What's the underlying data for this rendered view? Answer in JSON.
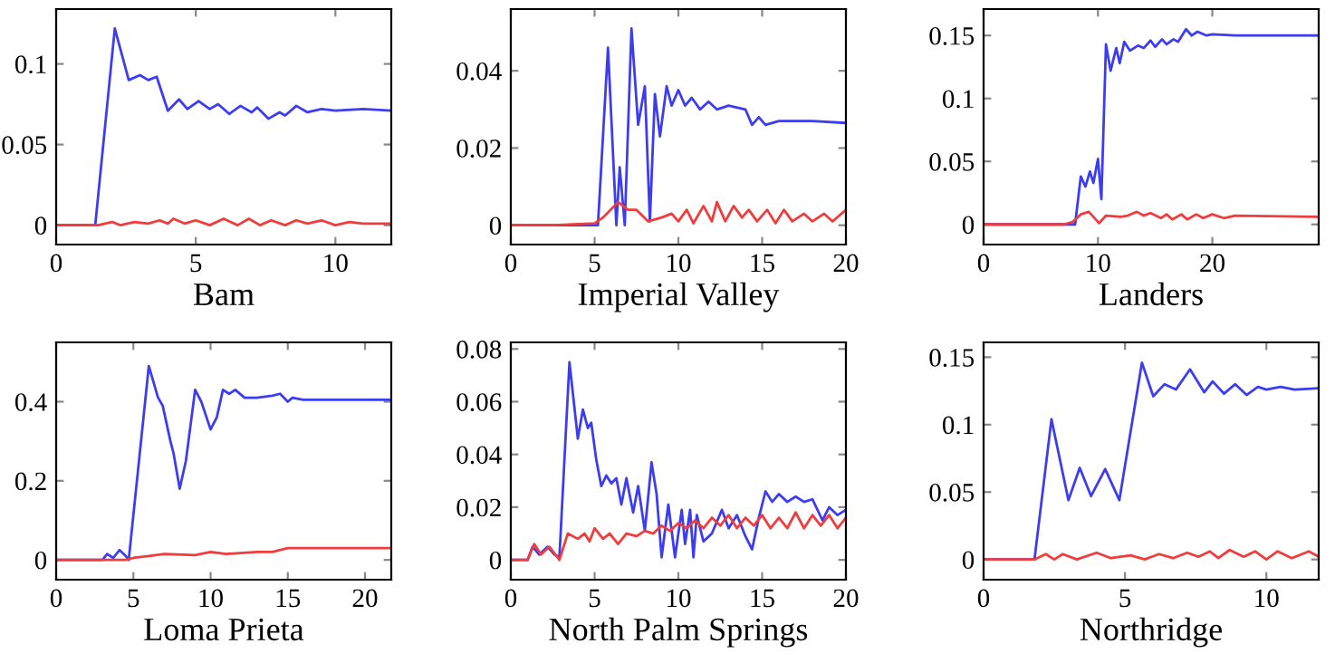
{
  "chart_data": [
    {
      "type": "line",
      "xlabel": "Bam",
      "xlim": [
        0,
        12
      ],
      "ylim": [
        -0.012,
        0.134
      ],
      "xticks": [
        0,
        5,
        10
      ],
      "yticks": [
        0,
        0.05,
        0.1
      ],
      "grid": false,
      "series": [
        {
          "color": "#3c3cf0",
          "x": [
            0,
            1.4,
            2.1,
            2.6,
            3.0,
            3.3,
            3.6,
            4.0,
            4.4,
            4.7,
            5.1,
            5.5,
            5.8,
            6.2,
            6.6,
            7.0,
            7.2,
            7.6,
            8.0,
            8.2,
            8.6,
            9.0,
            9.5,
            10,
            11,
            12
          ],
          "values": [
            0,
            0,
            0.122,
            0.09,
            0.093,
            0.09,
            0.092,
            0.071,
            0.078,
            0.072,
            0.077,
            0.072,
            0.075,
            0.069,
            0.074,
            0.07,
            0.073,
            0.066,
            0.07,
            0.068,
            0.074,
            0.07,
            0.072,
            0.071,
            0.072,
            0.071
          ]
        },
        {
          "color": "#f03c3c",
          "x": [
            0,
            1.5,
            2,
            2.3,
            2.8,
            3.3,
            3.7,
            4,
            4.2,
            4.6,
            5,
            5.5,
            6,
            6.5,
            6.9,
            7.3,
            7.7,
            8.2,
            8.6,
            9,
            9.5,
            10,
            10.5,
            11,
            12
          ],
          "values": [
            0,
            0,
            0.002,
            0,
            0.002,
            0.001,
            0.003,
            0.001,
            0.004,
            0.001,
            0.003,
            0,
            0.004,
            0,
            0.004,
            0,
            0.003,
            0,
            0.003,
            0.001,
            0.003,
            0,
            0.002,
            0.001,
            0.001
          ]
        }
      ]
    },
    {
      "type": "line",
      "xlabel": "Imperial Valley",
      "xlim": [
        0,
        20
      ],
      "ylim": [
        -0.005,
        0.056
      ],
      "xticks": [
        0,
        5,
        10,
        15,
        20
      ],
      "yticks": [
        0,
        0.02,
        0.04
      ],
      "grid": false,
      "series": [
        {
          "color": "#3c3cf0",
          "x": [
            0,
            5.2,
            5.8,
            6.3,
            6.5,
            6.8,
            7.2,
            7.6,
            8.0,
            8.3,
            8.6,
            8.9,
            9.3,
            9.6,
            10,
            10.4,
            10.8,
            11.3,
            11.8,
            12.3,
            13,
            14,
            14.4,
            14.8,
            15.2,
            16,
            18,
            20
          ],
          "values": [
            0,
            0,
            0.046,
            0,
            0.015,
            0,
            0.051,
            0.026,
            0.036,
            0.001,
            0.034,
            0.023,
            0.036,
            0.031,
            0.035,
            0.031,
            0.033,
            0.03,
            0.032,
            0.03,
            0.031,
            0.03,
            0.026,
            0.028,
            0.026,
            0.027,
            0.027,
            0.0265
          ]
        },
        {
          "color": "#f03c3c",
          "x": [
            0,
            2.5,
            5,
            5.5,
            6.4,
            7,
            7.5,
            8.2,
            9,
            9.6,
            10,
            10.5,
            10.9,
            11.5,
            12,
            12.3,
            12.8,
            13.3,
            13.8,
            14.2,
            14.7,
            15.3,
            15.8,
            16.3,
            16.8,
            17.5,
            18,
            18.7,
            19.2,
            20
          ],
          "values": [
            0,
            0,
            0.0005,
            0.002,
            0.006,
            0.004,
            0.004,
            0.001,
            0.002,
            0.003,
            0.001,
            0.004,
            0.0005,
            0.005,
            0.001,
            0.006,
            0.001,
            0.005,
            0.002,
            0.004,
            0.001,
            0.004,
            0.0005,
            0.004,
            0.001,
            0.003,
            0.001,
            0.003,
            0.001,
            0.004
          ]
        }
      ]
    },
    {
      "type": "line",
      "xlabel": "Landers",
      "xlim": [
        0,
        29.3
      ],
      "ylim": [
        -0.016,
        0.171
      ],
      "xticks": [
        0,
        10,
        20
      ],
      "yticks": [
        0,
        0.05,
        0.1,
        0.15
      ],
      "grid": false,
      "series": [
        {
          "color": "#3c3cf0",
          "x": [
            0,
            8.0,
            8.5,
            8.9,
            9.3,
            9.6,
            10,
            10.3,
            10.7,
            11.1,
            11.6,
            11.9,
            12.3,
            12.8,
            13.5,
            14,
            14.6,
            15,
            15.6,
            16,
            16.6,
            17,
            17.7,
            18.2,
            18.7,
            19.5,
            20,
            22,
            29.3
          ],
          "values": [
            0,
            0,
            0.038,
            0.03,
            0.042,
            0.033,
            0.052,
            0.02,
            0.143,
            0.122,
            0.14,
            0.128,
            0.145,
            0.138,
            0.142,
            0.14,
            0.146,
            0.141,
            0.147,
            0.143,
            0.147,
            0.145,
            0.155,
            0.15,
            0.153,
            0.15,
            0.151,
            0.15,
            0.15
          ]
        },
        {
          "color": "#f03c3c",
          "x": [
            0,
            7,
            7.8,
            8.5,
            9.2,
            9.6,
            10.1,
            10.7,
            12,
            12.6,
            13.4,
            14,
            14.6,
            15.5,
            16,
            16.5,
            17.3,
            17.8,
            18.6,
            19.2,
            20,
            21,
            22,
            29.3
          ],
          "values": [
            0,
            0,
            0.002,
            0.008,
            0.01,
            0.006,
            0.001,
            0.007,
            0.006,
            0.007,
            0.01,
            0.007,
            0.009,
            0.005,
            0.008,
            0.004,
            0.008,
            0.004,
            0.008,
            0.005,
            0.008,
            0.005,
            0.007,
            0.006
          ]
        }
      ]
    },
    {
      "type": "line",
      "xlabel": "Loma Prieta",
      "xlim": [
        0,
        21.7
      ],
      "ylim": [
        -0.05,
        0.55
      ],
      "xticks": [
        0,
        5,
        10,
        15,
        20
      ],
      "yticks": [
        0,
        0.2,
        0.4
      ],
      "grid": false,
      "series": [
        {
          "color": "#3c3cf0",
          "x": [
            0,
            3.0,
            3.3,
            3.7,
            4.1,
            4.5,
            4.7,
            6.0,
            6.6,
            6.9,
            7.4,
            7.6,
            8.0,
            8.4,
            9.0,
            9.4,
            10.0,
            10.4,
            10.8,
            11.2,
            11.6,
            12.2,
            13,
            14,
            14.5,
            15,
            15.3,
            16,
            21.7
          ],
          "values": [
            0,
            0,
            0.015,
            0.005,
            0.025,
            0.01,
            0,
            0.49,
            0.41,
            0.39,
            0.3,
            0.27,
            0.18,
            0.25,
            0.43,
            0.4,
            0.33,
            0.36,
            0.43,
            0.42,
            0.43,
            0.41,
            0.41,
            0.415,
            0.42,
            0.4,
            0.41,
            0.405,
            0.405
          ]
        },
        {
          "color": "#f03c3c",
          "x": [
            0,
            4.5,
            5,
            6,
            7,
            9,
            10,
            11,
            13,
            14,
            15,
            18,
            21.7
          ],
          "values": [
            0,
            0,
            0.005,
            0.01,
            0.015,
            0.012,
            0.02,
            0.015,
            0.02,
            0.02,
            0.03,
            0.03,
            0.03
          ]
        }
      ]
    },
    {
      "type": "line",
      "xlabel": "North Palm Springs",
      "xlim": [
        0,
        20
      ],
      "ylim": [
        -0.0075,
        0.0825
      ],
      "xticks": [
        0,
        5,
        10,
        15,
        20
      ],
      "yticks": [
        0,
        0.02,
        0.04,
        0.06,
        0.08
      ],
      "grid": false,
      "series": [
        {
          "color": "#3c3cf0",
          "x": [
            0,
            1,
            1.3,
            1.7,
            2.2,
            2.6,
            2.9,
            3.5,
            4.0,
            4.3,
            4.6,
            4.8,
            5.1,
            5.4,
            5.7,
            6,
            6.3,
            6.6,
            6.9,
            7.3,
            7.6,
            8,
            8.4,
            8.7,
            9.0,
            9.4,
            9.8,
            10.2,
            10.4,
            10.7,
            10.9,
            11.1,
            11.5,
            12,
            12.6,
            13,
            13.5,
            14,
            14.4,
            14.8,
            15.2,
            15.6,
            16,
            16.5,
            17,
            17.5,
            18,
            18.6,
            19,
            19.5,
            20
          ],
          "values": [
            0,
            0,
            0.005,
            0.002,
            0.005,
            0.002,
            0.001,
            0.075,
            0.046,
            0.057,
            0.05,
            0.052,
            0.038,
            0.028,
            0.032,
            0.029,
            0.031,
            0.021,
            0.031,
            0.018,
            0.028,
            0.011,
            0.037,
            0.025,
            0.001,
            0.021,
            0.001,
            0.019,
            0.006,
            0.019,
            0.001,
            0.017,
            0.007,
            0.01,
            0.019,
            0.012,
            0.017,
            0.009,
            0.004,
            0.016,
            0.026,
            0.022,
            0.025,
            0.022,
            0.024,
            0.022,
            0.023,
            0.015,
            0.02,
            0.017,
            0.019
          ]
        },
        {
          "color": "#f03c3c",
          "x": [
            0,
            1,
            1.4,
            1.8,
            2.3,
            2.9,
            3.4,
            4.0,
            4.4,
            4.7,
            5.0,
            5.5,
            5.9,
            6.4,
            6.9,
            7.5,
            8,
            8.5,
            9,
            9.5,
            10,
            10.5,
            11,
            11.5,
            12,
            12.5,
            13,
            13.5,
            14,
            14.5,
            15,
            15.5,
            16,
            16.5,
            17,
            17.5,
            18,
            18.5,
            19,
            19.5,
            20
          ],
          "values": [
            0,
            0,
            0.006,
            0.002,
            0.005,
            0,
            0.01,
            0.008,
            0.01,
            0.007,
            0.012,
            0.008,
            0.01,
            0.006,
            0.01,
            0.009,
            0.011,
            0.01,
            0.013,
            0.011,
            0.014,
            0.012,
            0.015,
            0.012,
            0.016,
            0.013,
            0.017,
            0.012,
            0.016,
            0.013,
            0.017,
            0.012,
            0.016,
            0.012,
            0.018,
            0.012,
            0.017,
            0.013,
            0.017,
            0.012,
            0.016
          ]
        }
      ]
    },
    {
      "type": "line",
      "xlabel": "Northridge",
      "xlim": [
        0,
        11.85
      ],
      "ylim": [
        -0.015,
        0.161
      ],
      "xticks": [
        0,
        5,
        10
      ],
      "yticks": [
        0,
        0.05,
        0.1,
        0.15
      ],
      "grid": false,
      "series": [
        {
          "color": "#3c3cf0",
          "x": [
            0,
            1.8,
            2.4,
            3.0,
            3.4,
            3.8,
            4.3,
            4.8,
            5.6,
            6.0,
            6.4,
            6.8,
            7.3,
            7.8,
            8.1,
            8.5,
            8.9,
            9.3,
            9.7,
            10,
            10.5,
            11,
            11.85
          ],
          "values": [
            0,
            0,
            0.104,
            0.044,
            0.068,
            0.047,
            0.067,
            0.044,
            0.146,
            0.121,
            0.13,
            0.126,
            0.141,
            0.124,
            0.132,
            0.123,
            0.13,
            0.122,
            0.128,
            0.126,
            0.128,
            0.126,
            0.127
          ]
        },
        {
          "color": "#f03c3c",
          "x": [
            0,
            1.8,
            2.2,
            2.5,
            2.8,
            3.3,
            4.0,
            4.5,
            5.2,
            5.7,
            6.2,
            6.7,
            7.2,
            7.6,
            8.0,
            8.3,
            8.7,
            9.2,
            9.6,
            10,
            10.4,
            10.9,
            11.5,
            11.85
          ],
          "values": [
            0,
            0,
            0.004,
            0,
            0.004,
            0,
            0.005,
            0.001,
            0.003,
            0,
            0.004,
            0.001,
            0.005,
            0.002,
            0.006,
            0.001,
            0.007,
            0.002,
            0.006,
            0,
            0.006,
            0.001,
            0.006,
            0.002
          ]
        }
      ]
    }
  ]
}
